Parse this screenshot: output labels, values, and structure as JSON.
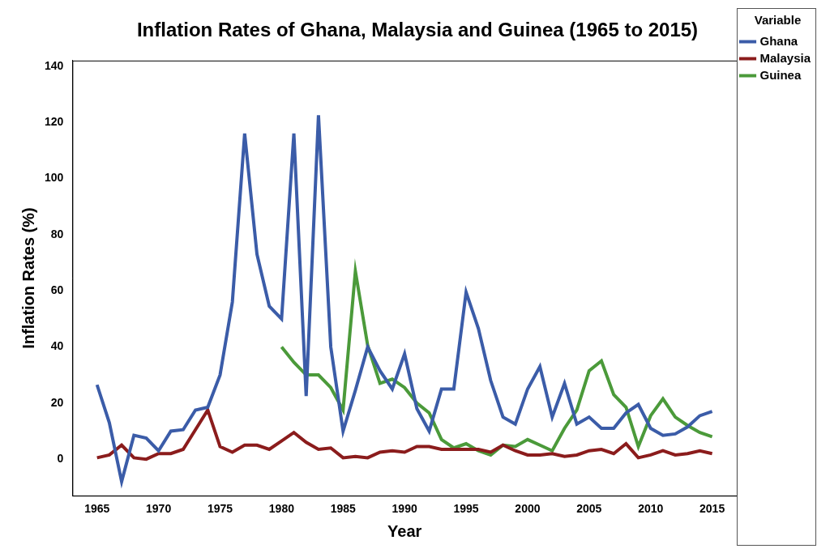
{
  "chart_data": {
    "type": "line",
    "title": "Inflation Rates of Ghana, Malaysia and Guinea (1965 to 2015)",
    "x_label": "Year",
    "y_label": "Inflation Rates (%)",
    "legend_title": "Variable",
    "legend": "top right",
    "grid": false,
    "marker": "none",
    "x": [
      1965,
      1966,
      1967,
      1968,
      1969,
      1970,
      1971,
      1972,
      1973,
      1974,
      1975,
      1976,
      1977,
      1978,
      1979,
      1980,
      1981,
      1982,
      1983,
      1984,
      1985,
      1986,
      1987,
      1988,
      1989,
      1990,
      1991,
      1992,
      1993,
      1994,
      1995,
      1996,
      1997,
      1998,
      1999,
      2000,
      2001,
      2002,
      2003,
      2004,
      2005,
      2006,
      2007,
      2008,
      2009,
      2010,
      2011,
      2012,
      2013,
      2014,
      2015
    ],
    "xlim": [
      1963,
      2017
    ],
    "xticks": [
      1965,
      1970,
      1975,
      1980,
      1985,
      1990,
      1995,
      2000,
      2005,
      2010,
      2015
    ],
    "ylim": [
      -13,
      142
    ],
    "yticks": [
      0,
      20,
      40,
      60,
      80,
      100,
      120,
      140
    ],
    "series": [
      {
        "name": "Ghana",
        "color": "#3b5ca8",
        "values": [
          26.5,
          13,
          -8,
          8.5,
          7.5,
          3,
          10,
          10.5,
          17.5,
          18.5,
          30,
          56,
          116,
          73,
          54.5,
          50,
          116,
          22.5,
          122.5,
          40,
          10,
          24.5,
          40,
          31.5,
          25,
          37.5,
          18,
          10,
          25,
          25,
          59.5,
          46.5,
          28,
          15,
          12.5,
          25,
          33,
          15,
          27,
          12.5,
          15,
          11,
          11,
          16.5,
          19.5,
          11,
          8.5,
          9,
          11.5,
          15.5,
          17
        ]
      },
      {
        "name": "Malaysia",
        "color": "#8b1c1c",
        "values": [
          0.5,
          1.5,
          5,
          0.5,
          0,
          2,
          2,
          3.5,
          10.5,
          17.5,
          4.5,
          2.5,
          5,
          5,
          3.5,
          6.5,
          9.5,
          6,
          3.5,
          4,
          0.5,
          1,
          0.5,
          2.5,
          3,
          2.5,
          4.5,
          4.5,
          3.5,
          3.5,
          3.5,
          3.5,
          2.5,
          5,
          3,
          1.5,
          1.5,
          2,
          1,
          1.5,
          3,
          3.5,
          2,
          5.5,
          0.5,
          1.5,
          3,
          1.5,
          2,
          3,
          2
        ]
      },
      {
        "name": "Guinea",
        "color": "#4b9a3a",
        "values": [
          null,
          null,
          null,
          null,
          null,
          null,
          null,
          null,
          null,
          null,
          null,
          null,
          null,
          null,
          null,
          40,
          34.5,
          30,
          30,
          25.5,
          17.5,
          67,
          40.5,
          27,
          28.5,
          25.5,
          20,
          16.5,
          7,
          4,
          5.5,
          3,
          1.5,
          5,
          4.5,
          7,
          5,
          3,
          11,
          17.5,
          31.5,
          35,
          23,
          18.5,
          4.5,
          15.5,
          21.5,
          15,
          12,
          9.5,
          8
        ]
      }
    ]
  }
}
